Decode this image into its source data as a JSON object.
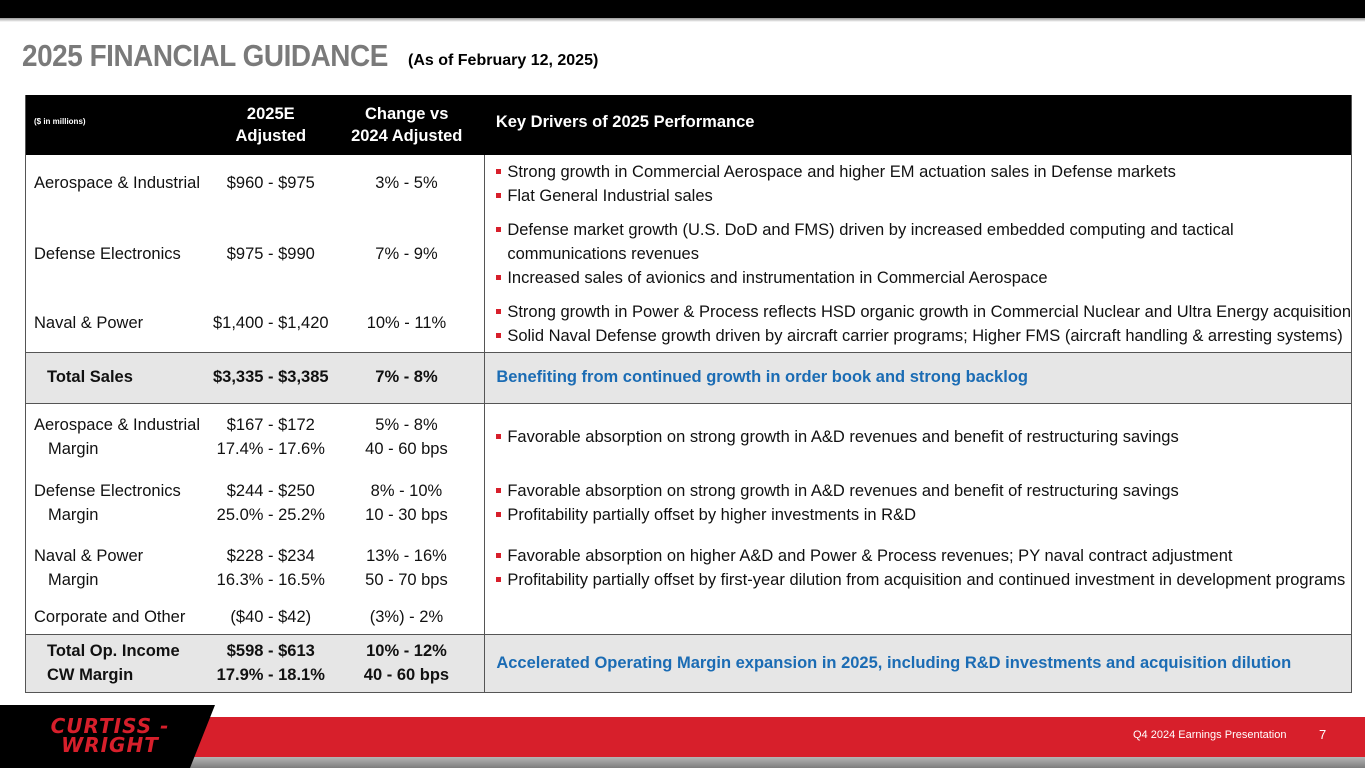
{
  "header": {
    "title": "2025 FINANCIAL GUIDANCE",
    "subtitle": "(As of February 12, 2025)"
  },
  "table": {
    "units_label": "($ in millions)",
    "col_estimate": [
      "2025E",
      "Adjusted"
    ],
    "col_change": [
      "Change vs",
      "2024 Adjusted"
    ],
    "col_drivers": "Key Drivers of 2025 Performance",
    "sales_rows": [
      {
        "segment": "Aerospace & Industrial",
        "estimate": "$960 - $975",
        "change": "3% - 5%",
        "drivers": [
          "Strong growth in Commercial Aerospace and higher EM actuation sales in Defense markets",
          "Flat General Industrial sales"
        ]
      },
      {
        "segment": "Defense Electronics",
        "estimate": "$975 - $990",
        "change": "7% - 9%",
        "drivers": [
          "Defense market growth (U.S. DoD and FMS) driven by increased embedded computing and tactical",
          "communications revenues",
          "Increased sales of avionics and instrumentation in Commercial Aerospace"
        ]
      },
      {
        "segment": "Naval & Power",
        "estimate": "$1,400 - $1,420",
        "change": "10% - 11%",
        "drivers": [
          "Strong growth in Power & Process reflects HSD organic growth in Commercial Nuclear and Ultra Energy acquisition",
          "Solid Naval Defense growth driven by aircraft carrier programs; Higher FMS (aircraft handling & arresting systems)"
        ]
      }
    ],
    "total_sales": {
      "label": "Total Sales",
      "estimate": "$3,335 - $3,385",
      "change": "7% - 8%",
      "driver": "Benefiting from continued growth in order book and strong backlog"
    },
    "income_rows": [
      {
        "segment": "Aerospace & Industrial",
        "margin_label": "Margin",
        "estimate": "$167 - $172",
        "margin": "17.4% - 17.6%",
        "change": "5% - 8%",
        "margin_change": "40 - 60 bps",
        "drivers": [
          "Favorable absorption on strong growth in A&D revenues and benefit of restructuring savings"
        ]
      },
      {
        "segment": "Defense Electronics",
        "margin_label": "Margin",
        "estimate": "$244 - $250",
        "margin": "25.0% - 25.2%",
        "change": "8% - 10%",
        "margin_change": "10 - 30 bps",
        "drivers": [
          "Favorable absorption on strong growth in A&D revenues and benefit of restructuring savings",
          "Profitability partially offset by higher investments in R&D"
        ]
      },
      {
        "segment": "Naval & Power",
        "margin_label": "Margin",
        "estimate": "$228 - $234",
        "margin": "16.3% - 16.5%",
        "change": "13% - 16%",
        "margin_change": "50 - 70 bps",
        "drivers": [
          "Favorable absorption on higher A&D and Power & Process revenues; PY naval contract adjustment",
          "Profitability partially offset by first-year dilution from acquisition and continued investment in development programs"
        ]
      }
    ],
    "corporate": {
      "segment": "Corporate and Other",
      "estimate": "($40 - $42)",
      "change": "(3%) - 2%"
    },
    "total_income": {
      "label": "Total Op. Income",
      "margin_label": "CW Margin",
      "estimate": "$598 - $613",
      "margin": "17.9% - 18.1%",
      "change": "10% - 12%",
      "margin_change": "40 - 60 bps",
      "driver": "Accelerated Operating Margin expansion in 2025, including R&D investments and acquisition dilution"
    }
  },
  "footer": {
    "logo_line1": "CURTISS -",
    "logo_line2": "WRIGHT",
    "presentation": "Q4 2024 Earnings Presentation",
    "page": "7"
  },
  "colors": {
    "brand_red": "#d71f2b",
    "title_gray": "#7a7a7a",
    "accent_blue": "#1b6cb4",
    "total_row_bg": "#e6e6e6"
  }
}
